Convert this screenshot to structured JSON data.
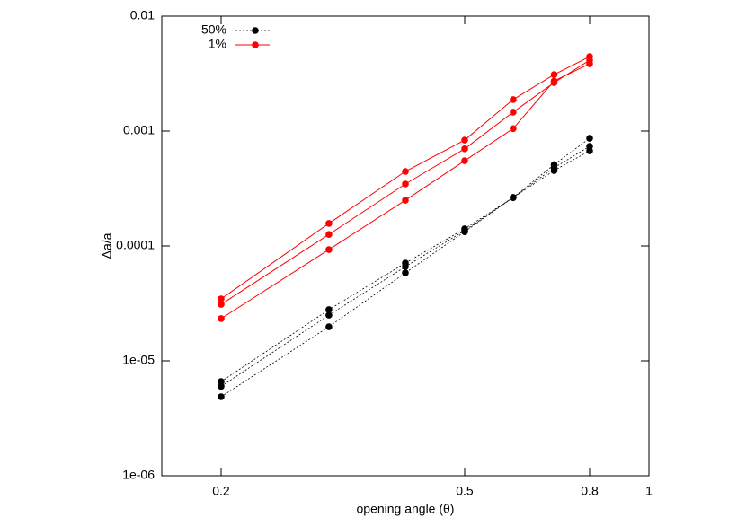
{
  "chart_data": {
    "type": "line",
    "xlabel": "opening angle (θ)",
    "ylabel": "Δa/a",
    "x": [
      0.2,
      0.3,
      0.4,
      0.5,
      0.6,
      0.7,
      0.8
    ],
    "xlim": [
      0.16,
      1
    ],
    "xticks": [
      0.2,
      0.5,
      0.8,
      1
    ],
    "ylim": [
      1e-06,
      0.01
    ],
    "yticks": [
      {
        "value": 1e-06,
        "label": "1e-06"
      },
      {
        "value": 1e-05,
        "label": "1e-05"
      },
      0.0001,
      0.001,
      0.01
    ],
    "xscale": "log",
    "yscale": "log",
    "legend": "upper left",
    "series": [
      {
        "name": "50%",
        "color": "#000000",
        "style": "dotted",
        "values": [
          [
            6.6e-06,
            2.79e-05,
            7.1e-05,
            0.000141,
            0.000264,
            0.00051,
            0.000865
          ],
          [
            6e-06,
            2.5e-05,
            6.6e-05,
            0.000136,
            0.000264,
            0.000479,
            0.000736
          ],
          [
            4.87e-06,
            1.98e-05,
            5.83e-05,
            0.000133,
            0.000264,
            0.000453,
            0.000673
          ]
        ]
      },
      {
        "name": "1%",
        "color": "#ff0000",
        "style": "solid",
        "values": [
          [
            3.46e-05,
            0.000157,
            0.000445,
            0.000835,
            0.00188,
            0.0031,
            0.00445
          ],
          [
            3.1e-05,
            0.000126,
            0.000346,
            0.0007,
            0.00146,
            0.00264,
            0.00414
          ],
          [
            2.33e-05,
            9.3e-05,
            0.00025,
            0.000552,
            0.00105,
            0.00273,
            0.00385
          ]
        ]
      }
    ]
  }
}
